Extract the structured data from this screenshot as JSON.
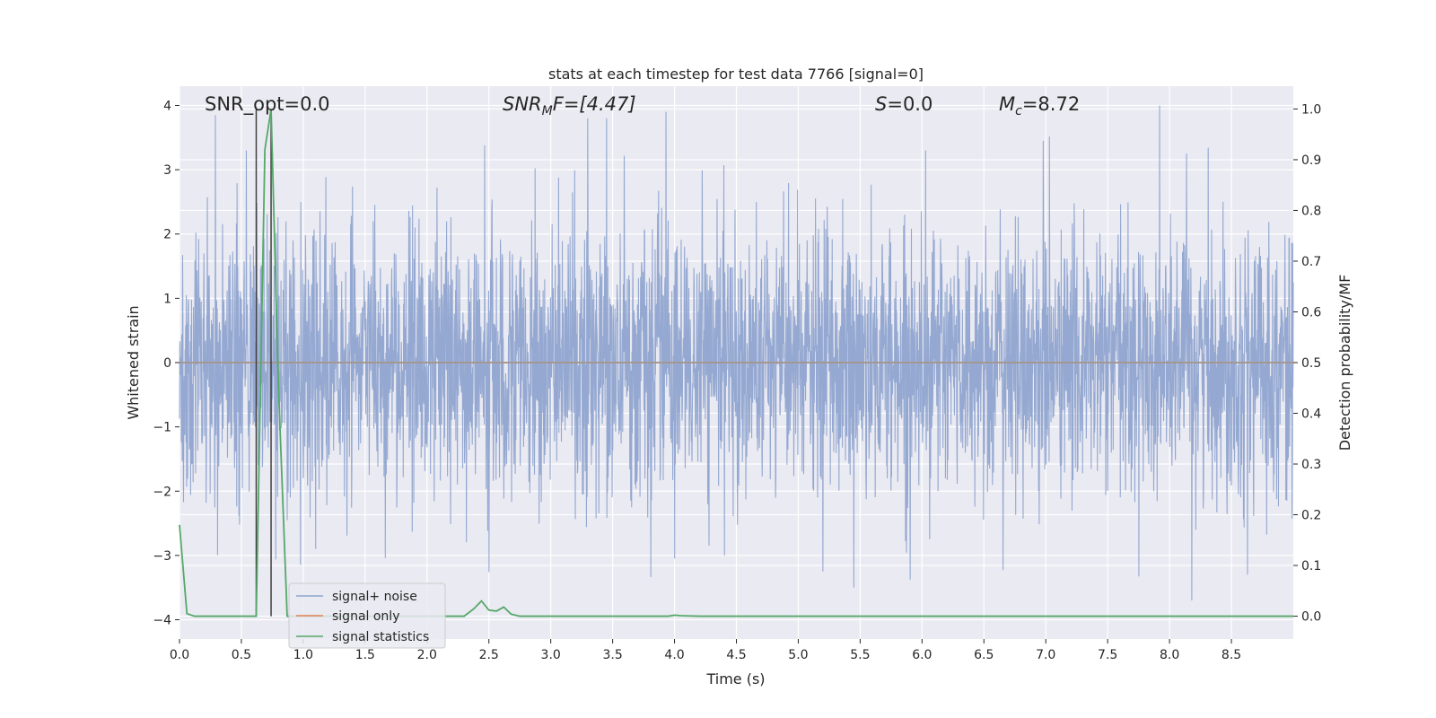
{
  "chart_data": {
    "type": "line",
    "title": "stats at each timestep for test data 7766 [signal=0]",
    "xlabel": "Time (s)",
    "ylabel_left": "Whitened strain",
    "ylabel_right": "Detection probability/MF",
    "xlim": [
      0.0,
      9.0
    ],
    "ylim_left": [
      -4.3,
      4.3
    ],
    "ylim_right": [
      -0.045,
      1.045
    ],
    "x_ticks": [
      "0.0",
      "0.5",
      "1.0",
      "1.5",
      "2.0",
      "2.5",
      "3.0",
      "3.5",
      "4.0",
      "4.5",
      "5.0",
      "5.5",
      "6.0",
      "6.5",
      "7.0",
      "7.5",
      "8.0",
      "8.5"
    ],
    "y_ticks_left": [
      "4",
      "3",
      "2",
      "1",
      "0",
      "−1",
      "−2",
      "−3",
      "−4"
    ],
    "y_ticks_right": [
      "1.0",
      "0.9",
      "0.8",
      "0.7",
      "0.6",
      "0.5",
      "0.4",
      "0.3",
      "0.2",
      "0.1",
      "0.0"
    ],
    "grid": true,
    "legend_position": "lower-left",
    "annotations": {
      "snr_opt": "SNR_opt=0.0",
      "snr_mf": "SNR",
      "snr_mf_sub": "M",
      "snr_mf_tail": "F=[4.47]",
      "s_label": "S",
      "s_value": "=0.0",
      "mc_label": "M",
      "mc_sub": "c",
      "mc_value": "=8.72"
    },
    "series": [
      {
        "name": "signal+ noise",
        "color": "#8fa4cf",
        "axis": "left",
        "kind": "dense noise, std ≈ 1, extremes ≈ ±4",
        "noise_std": 1.0,
        "noise_peaks": [
          {
            "x": 0.29,
            "y": 3.85
          },
          {
            "x": 3.45,
            "y": 3.8
          },
          {
            "x": 3.93,
            "y": 3.9
          },
          {
            "x": 7.92,
            "y": 4.0
          },
          {
            "x": 6.03,
            "y": 3.3
          },
          {
            "x": 6.98,
            "y": 3.45
          },
          {
            "x": 0.54,
            "y": 3.3
          },
          {
            "x": 5.45,
            "y": -3.5
          },
          {
            "x": 8.18,
            "y": -3.7
          },
          {
            "x": 8.63,
            "y": -3.3
          },
          {
            "x": 5.2,
            "y": -3.25
          },
          {
            "x": 4.0,
            "y": -3.05
          }
        ]
      },
      {
        "name": "signal only",
        "color": "#dd8452",
        "axis": "left",
        "x": [
          0.0,
          9.0
        ],
        "y": [
          0.0,
          0.0
        ]
      },
      {
        "name": "signal statistics",
        "color": "#55a868",
        "axis": "right",
        "x": [
          0.0,
          0.06,
          0.12,
          0.25,
          0.5,
          0.62,
          0.69,
          0.74,
          0.8,
          0.87,
          0.95,
          1.5,
          2.0,
          2.3,
          2.38,
          2.44,
          2.5,
          2.56,
          2.62,
          2.68,
          2.75,
          3.5,
          3.95,
          4.0,
          4.05,
          4.2,
          5.0,
          6.0,
          7.0,
          8.0,
          9.0
        ],
        "y": [
          0.18,
          0.005,
          0.0,
          0.0,
          0.0,
          0.0,
          0.92,
          1.0,
          0.45,
          0.0,
          0.0,
          0.0,
          0.0,
          0.0,
          0.015,
          0.03,
          0.012,
          0.01,
          0.018,
          0.004,
          0.0,
          0.0,
          0.0,
          0.002,
          0.001,
          0.0,
          0.0,
          0.0,
          0.0,
          0.0,
          0.0
        ]
      }
    ],
    "vertical_markers": {
      "color": "#404040",
      "x": [
        0.62,
        0.74
      ]
    }
  }
}
